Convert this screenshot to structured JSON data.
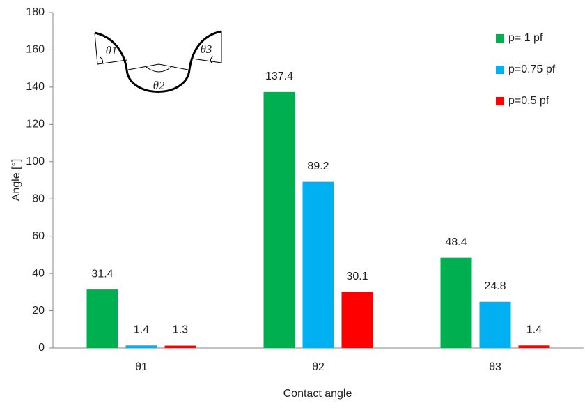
{
  "chart_data": {
    "type": "bar",
    "x_label": "Contact angle",
    "y_label": "Angle [°]",
    "categories": [
      "θ1",
      "θ2",
      "θ3"
    ],
    "series": [
      {
        "name": "p= 1 pf",
        "color": "#00b050",
        "values": [
          31.4,
          137.4,
          48.4
        ]
      },
      {
        "name": "p=0.75 pf",
        "color": "#00b0f0",
        "values": [
          1.4,
          89.2,
          24.8
        ]
      },
      {
        "name": "p=0.5 pf",
        "color": "#ff0000",
        "values": [
          1.3,
          30.1,
          1.4
        ]
      }
    ],
    "ylim": [
      0,
      180
    ],
    "yticks": [
      0,
      20,
      40,
      60,
      80,
      100,
      120,
      140,
      160,
      180
    ],
    "grid": false,
    "legend": "top-right",
    "inset": {
      "labels": [
        "θ1",
        "θ2",
        "θ3"
      ]
    }
  }
}
